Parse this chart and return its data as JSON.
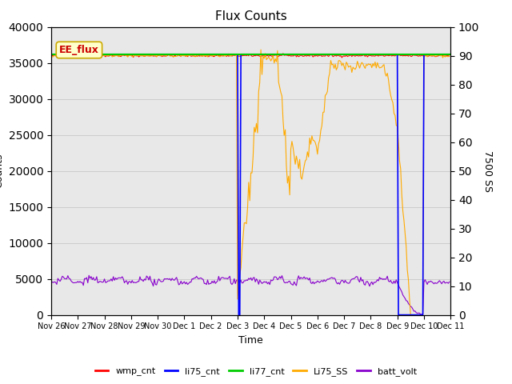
{
  "title": "Flux Counts",
  "xlabel": "Time",
  "ylabel_left": "Counts",
  "ylabel_right": "7500 SS",
  "annotation_text": "EE_flux",
  "annotation_color": "#cc0000",
  "annotation_bg": "#ffffcc",
  "annotation_border": "#ccaa00",
  "ylim_left": [
    0,
    40000
  ],
  "ylim_right": [
    0,
    100
  ],
  "yticks_left": [
    0,
    5000,
    10000,
    15000,
    20000,
    25000,
    30000,
    35000,
    40000
  ],
  "yticks_right": [
    0,
    10,
    20,
    30,
    40,
    50,
    60,
    70,
    80,
    90,
    100
  ],
  "grid_color": "#cccccc",
  "bg_color": "#e8e8e8",
  "legend_items": [
    "wmp_cnt",
    "li75_cnt",
    "li77_cnt",
    "Li75_SS",
    "batt_volt"
  ],
  "line_colors": {
    "wmp_cnt": "#ff0000",
    "li75_cnt": "#0000ff",
    "li77_cnt": "#00cc00",
    "Li75_SS": "#ffaa00",
    "batt_volt": "#8800cc"
  },
  "xtick_labels": [
    "Nov 26",
    "Nov 27",
    "Nov 28",
    "Nov 29",
    "Nov 30",
    "Dec 1",
    "Dec 2",
    "Dec 3",
    "Dec 4",
    "Dec 5",
    "Dec 6",
    "Dec 7",
    "Dec 8",
    "Dec 9",
    "Dec 10",
    "Dec 11"
  ]
}
